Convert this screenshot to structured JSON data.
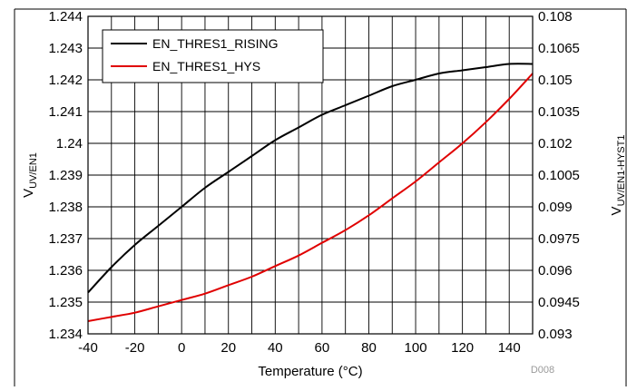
{
  "chart_data": {
    "type": "line",
    "title": "",
    "xlabel": "Temperature (°C)",
    "ylabel_left": {
      "main": "V",
      "sub": "UV/EN1"
    },
    "ylabel_right": {
      "main": "V",
      "sub": "UV/EN1-HYST1"
    },
    "figure_id": "D008",
    "xlim": [
      -40,
      150
    ],
    "ylim_left": [
      1.234,
      1.244
    ],
    "ylim_right": [
      0.093,
      0.108
    ],
    "x_ticks": [
      "-40",
      "-20",
      "0",
      "20",
      "40",
      "60",
      "80",
      "100",
      "120",
      "140"
    ],
    "y_left_ticks": [
      "1.234",
      "1.235",
      "1.236",
      "1.237",
      "1.238",
      "1.239",
      "1.24",
      "1.241",
      "1.242",
      "1.243",
      "1.244"
    ],
    "y_right_ticks": [
      "0.093",
      "0.0945",
      "0.096",
      "0.0975",
      "0.099",
      "0.1005",
      "0.102",
      "0.1035",
      "0.105",
      "0.1065",
      "0.108"
    ],
    "grid": true,
    "legend_position": "top-left",
    "series": [
      {
        "name": "EN_THRES1_RISING",
        "axis": "left",
        "color": "#000000",
        "x": [
          -40,
          -30,
          -20,
          -10,
          0,
          10,
          20,
          30,
          40,
          50,
          60,
          70,
          80,
          90,
          100,
          110,
          120,
          130,
          140,
          150
        ],
        "y": [
          1.2353,
          1.2361,
          1.2368,
          1.2374,
          1.238,
          1.2386,
          1.2391,
          1.2396,
          1.2401,
          1.2405,
          1.2409,
          1.2412,
          1.2415,
          1.2418,
          1.242,
          1.2422,
          1.2423,
          1.2424,
          1.2425,
          1.2425
        ]
      },
      {
        "name": "EN_THRES1_HYS",
        "axis": "right",
        "color": "#e00000",
        "x": [
          -40,
          -30,
          -20,
          -10,
          0,
          10,
          20,
          30,
          40,
          50,
          60,
          70,
          80,
          90,
          100,
          110,
          120,
          130,
          140,
          150
        ],
        "y": [
          0.0936,
          0.0938,
          0.094,
          0.0943,
          0.0946,
          0.0949,
          0.0953,
          0.0957,
          0.0962,
          0.0967,
          0.0973,
          0.0979,
          0.0986,
          0.0994,
          0.1002,
          0.1011,
          0.102,
          0.103,
          0.1041,
          0.1053
        ]
      }
    ]
  }
}
